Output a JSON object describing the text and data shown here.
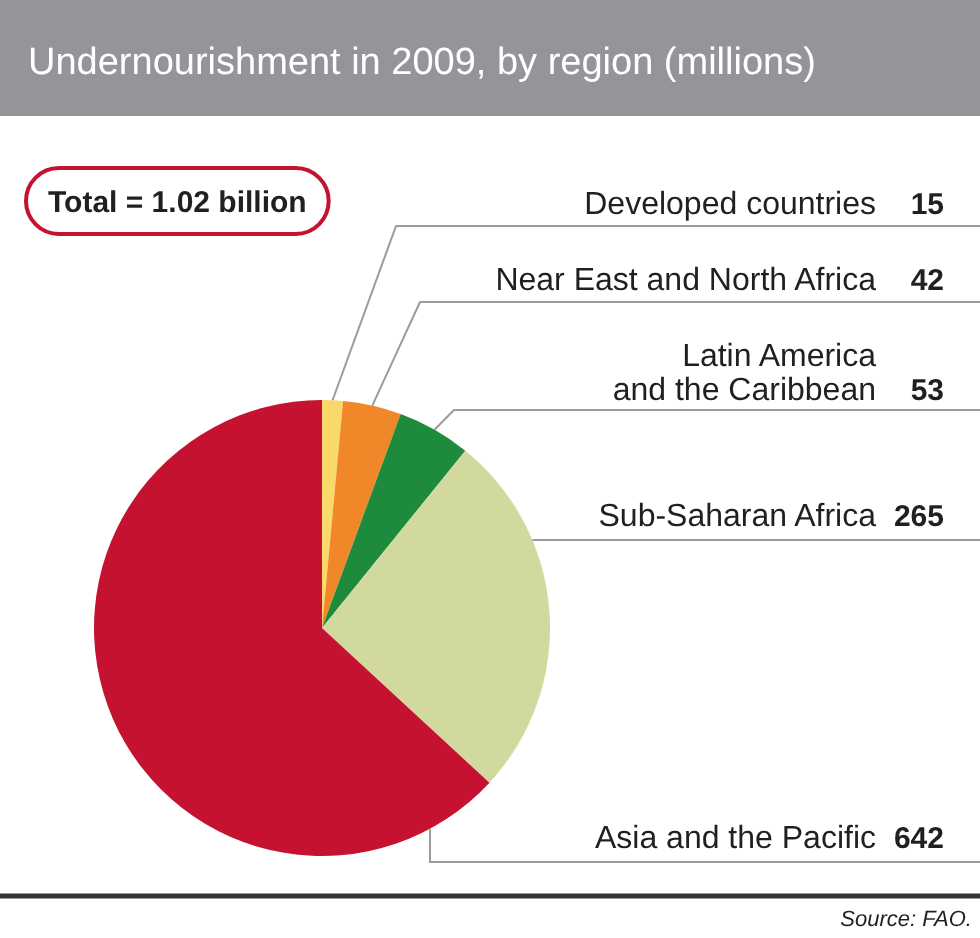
{
  "chart_data": {
    "type": "pie",
    "title": "Undernourishment in 2009, by region (millions)",
    "categories": [
      "Developed countries",
      "Near East and North Africa",
      "Latin America and the Caribbean",
      "Sub-Saharan Africa",
      "Asia and the Pacific"
    ],
    "values": [
      15,
      42,
      53,
      265,
      642
    ],
    "colors": [
      "#fbd86a",
      "#f0882a",
      "#1e8a3c",
      "#d2d99e",
      "#c41230"
    ],
    "data_labels": true,
    "annotations": [
      "Total = 1.02 billion",
      "Source: FAO."
    ]
  }
}
